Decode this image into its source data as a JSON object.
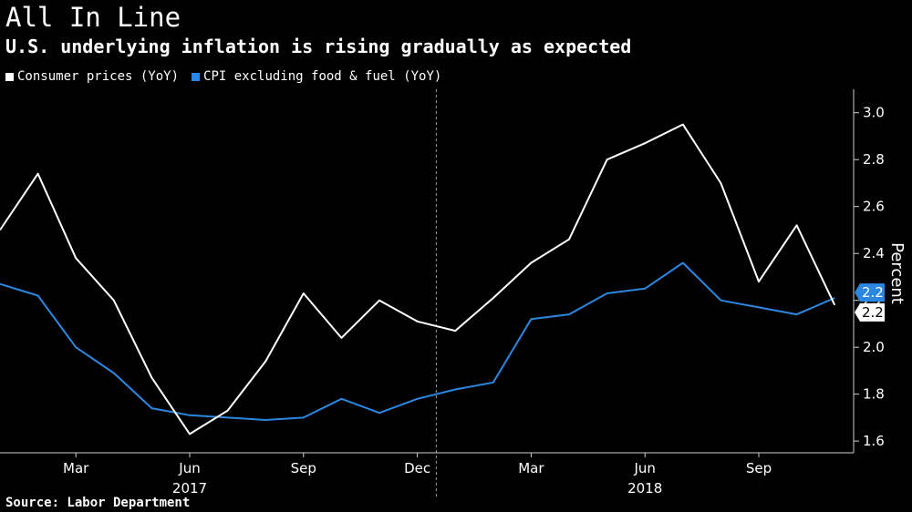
{
  "header": {
    "title": "All In Line",
    "subtitle": "U.S. underlying inflation is rising gradually as expected"
  },
  "source": "Source: Labor Department",
  "chart_data": {
    "type": "line",
    "title": "All In Line",
    "subtitle": "U.S. underlying inflation is rising gradually as expected",
    "ylabel": "Percent",
    "xlabel": "",
    "ylim": [
      1.55,
      3.1
    ],
    "y_axis_side": "right",
    "y_ticks": [
      1.6,
      1.8,
      2.0,
      2.2,
      2.4,
      2.6,
      2.8,
      3.0
    ],
    "y_tick_labels": [
      "1.6",
      "1.8",
      "2.0",
      "2.2",
      "2.4",
      "2.6",
      "2.8",
      "3.0"
    ],
    "grid": "vertical dashed at year boundary",
    "legend_position": "top-left",
    "x": [
      "2017-01",
      "2017-02",
      "2017-03",
      "2017-04",
      "2017-05",
      "2017-06",
      "2017-07",
      "2017-08",
      "2017-09",
      "2017-10",
      "2017-11",
      "2017-12",
      "2018-01",
      "2018-02",
      "2018-03",
      "2018-04",
      "2018-05",
      "2018-06",
      "2018-07",
      "2018-08",
      "2018-09",
      "2018-10",
      "2018-11"
    ],
    "x_ticks": [
      {
        "x": "2017-03",
        "label": "Mar"
      },
      {
        "x": "2017-06",
        "label": "Jun"
      },
      {
        "x": "2017-09",
        "label": "Sep"
      },
      {
        "x": "2017-12",
        "label": "Dec"
      },
      {
        "x": "2018-03",
        "label": "Mar"
      },
      {
        "x": "2018-06",
        "label": "Jun"
      },
      {
        "x": "2018-09",
        "label": "Sep"
      }
    ],
    "year_labels": [
      {
        "x": "2017-06",
        "label": "2017"
      },
      {
        "x": "2018-06",
        "label": "2018"
      }
    ],
    "year_boundary": "2018-01",
    "series": [
      {
        "name": "Consumer prices (YoY)",
        "color": "#ffffff",
        "values": [
          2.5,
          2.74,
          2.38,
          2.2,
          1.87,
          1.63,
          1.73,
          1.94,
          2.23,
          2.04,
          2.2,
          2.11,
          2.07,
          2.21,
          2.36,
          2.46,
          2.8,
          2.87,
          2.95,
          2.7,
          2.28,
          2.52,
          2.18
        ],
        "last_value_label": "2.2"
      },
      {
        "name": "CPI excluding food & fuel (YoY)",
        "color": "#2b87e0",
        "values": [
          2.27,
          2.22,
          2.0,
          1.89,
          1.74,
          1.71,
          1.7,
          1.69,
          1.7,
          1.78,
          1.72,
          1.78,
          1.82,
          1.85,
          2.12,
          2.14,
          2.23,
          2.25,
          2.36,
          2.2,
          2.17,
          2.14,
          2.21
        ],
        "last_value_label": "2.2"
      }
    ]
  }
}
